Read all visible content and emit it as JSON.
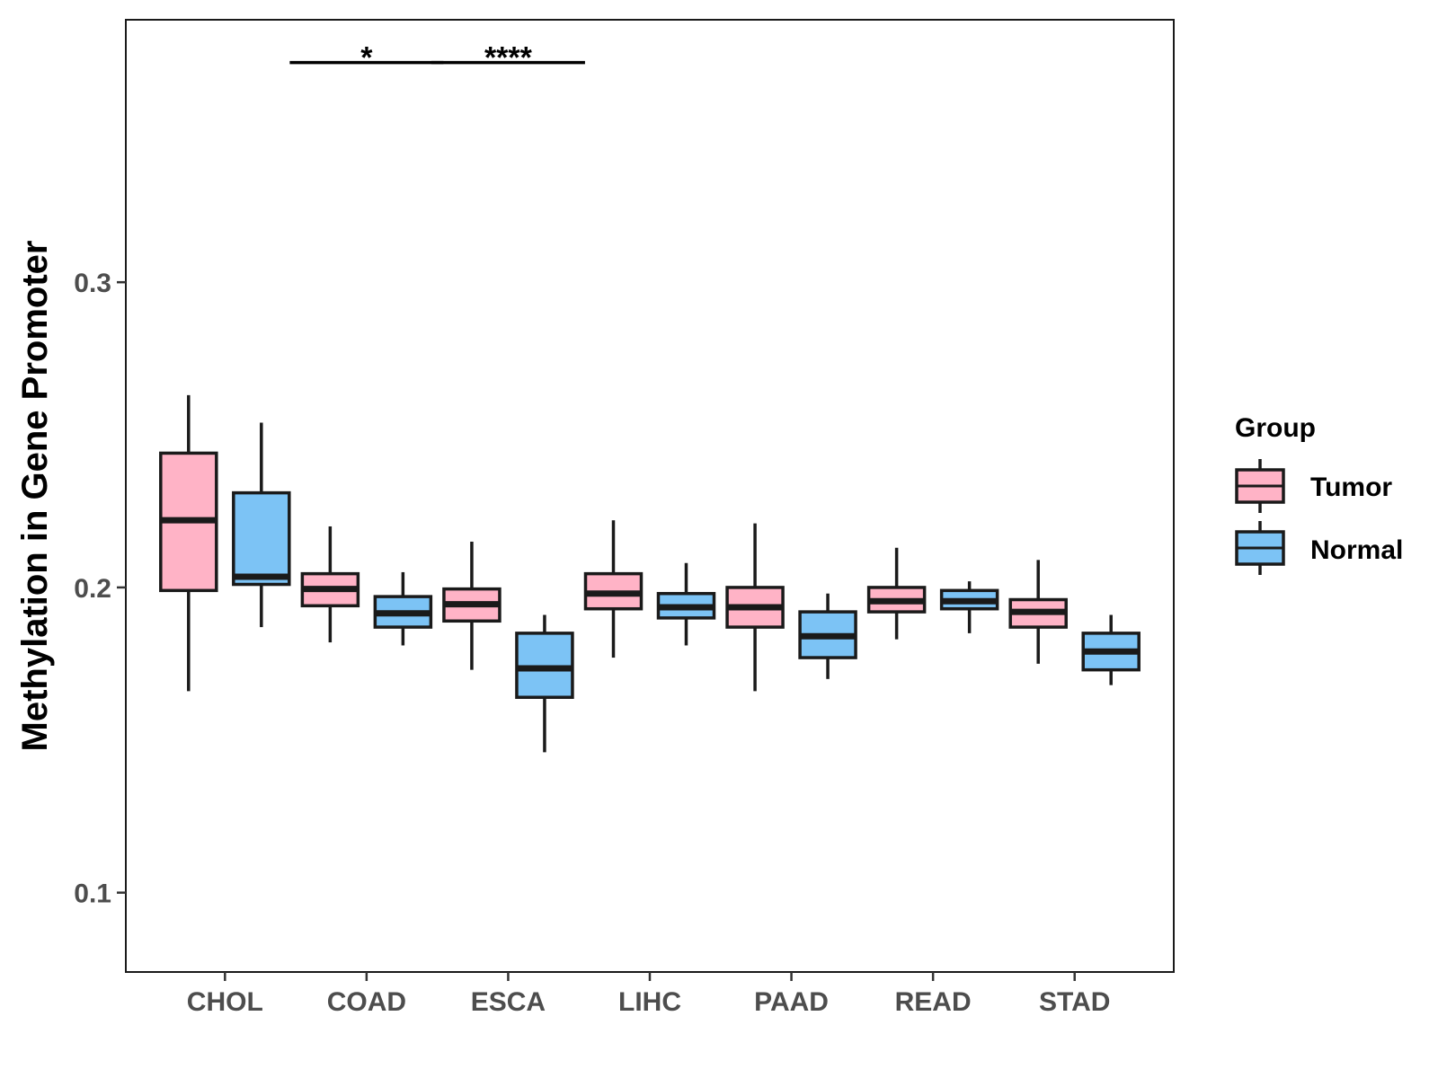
{
  "chart_data": {
    "type": "boxplot",
    "title": "",
    "xlabel": "",
    "ylabel": "Methylation in Gene Promoter",
    "ylim": [
      0.074,
      0.386
    ],
    "yticks": [
      0.1,
      0.2,
      0.3
    ],
    "ytick_labels": [
      "0.1",
      "0.2",
      "0.3"
    ],
    "grid": false,
    "categories": [
      "CHOL",
      "COAD",
      "ESCA",
      "LIHC",
      "PAAD",
      "READ",
      "STAD"
    ],
    "series": [
      {
        "name": "Tumor",
        "color": "#FFB3C6",
        "boxes": [
          {
            "whisker_low": 0.166,
            "q1": 0.199,
            "median": 0.222,
            "q3": 0.244,
            "whisker_high": 0.263
          },
          {
            "whisker_low": 0.182,
            "q1": 0.194,
            "median": 0.1995,
            "q3": 0.2045,
            "whisker_high": 0.22
          },
          {
            "whisker_low": 0.173,
            "q1": 0.189,
            "median": 0.1945,
            "q3": 0.1995,
            "whisker_high": 0.215
          },
          {
            "whisker_low": 0.177,
            "q1": 0.193,
            "median": 0.198,
            "q3": 0.2045,
            "whisker_high": 0.222
          },
          {
            "whisker_low": 0.166,
            "q1": 0.187,
            "median": 0.1935,
            "q3": 0.2,
            "whisker_high": 0.221
          },
          {
            "whisker_low": 0.183,
            "q1": 0.192,
            "median": 0.1955,
            "q3": 0.2,
            "whisker_high": 0.213
          },
          {
            "whisker_low": 0.175,
            "q1": 0.187,
            "median": 0.192,
            "q3": 0.196,
            "whisker_high": 0.209
          }
        ]
      },
      {
        "name": "Normal",
        "color": "#7CC3F5",
        "boxes": [
          {
            "whisker_low": 0.187,
            "q1": 0.201,
            "median": 0.2035,
            "q3": 0.231,
            "whisker_high": 0.254
          },
          {
            "whisker_low": 0.181,
            "q1": 0.187,
            "median": 0.1915,
            "q3": 0.197,
            "whisker_high": 0.205
          },
          {
            "whisker_low": 0.146,
            "q1": 0.164,
            "median": 0.1735,
            "q3": 0.185,
            "whisker_high": 0.191
          },
          {
            "whisker_low": 0.181,
            "q1": 0.19,
            "median": 0.1935,
            "q3": 0.198,
            "whisker_high": 0.208
          },
          {
            "whisker_low": 0.17,
            "q1": 0.177,
            "median": 0.184,
            "q3": 0.192,
            "whisker_high": 0.198
          },
          {
            "whisker_low": 0.185,
            "q1": 0.193,
            "median": 0.1955,
            "q3": 0.199,
            "whisker_high": 0.202
          },
          {
            "whisker_low": 0.168,
            "q1": 0.173,
            "median": 0.179,
            "q3": 0.185,
            "whisker_high": 0.191
          }
        ]
      }
    ],
    "legend": {
      "title": "Group",
      "position": "right",
      "entries": [
        "Tumor",
        "Normal"
      ]
    },
    "annotations": [
      {
        "category": "COAD",
        "label": "*",
        "y": 0.372
      },
      {
        "category": "ESCA",
        "label": "****",
        "y": 0.372
      }
    ]
  }
}
